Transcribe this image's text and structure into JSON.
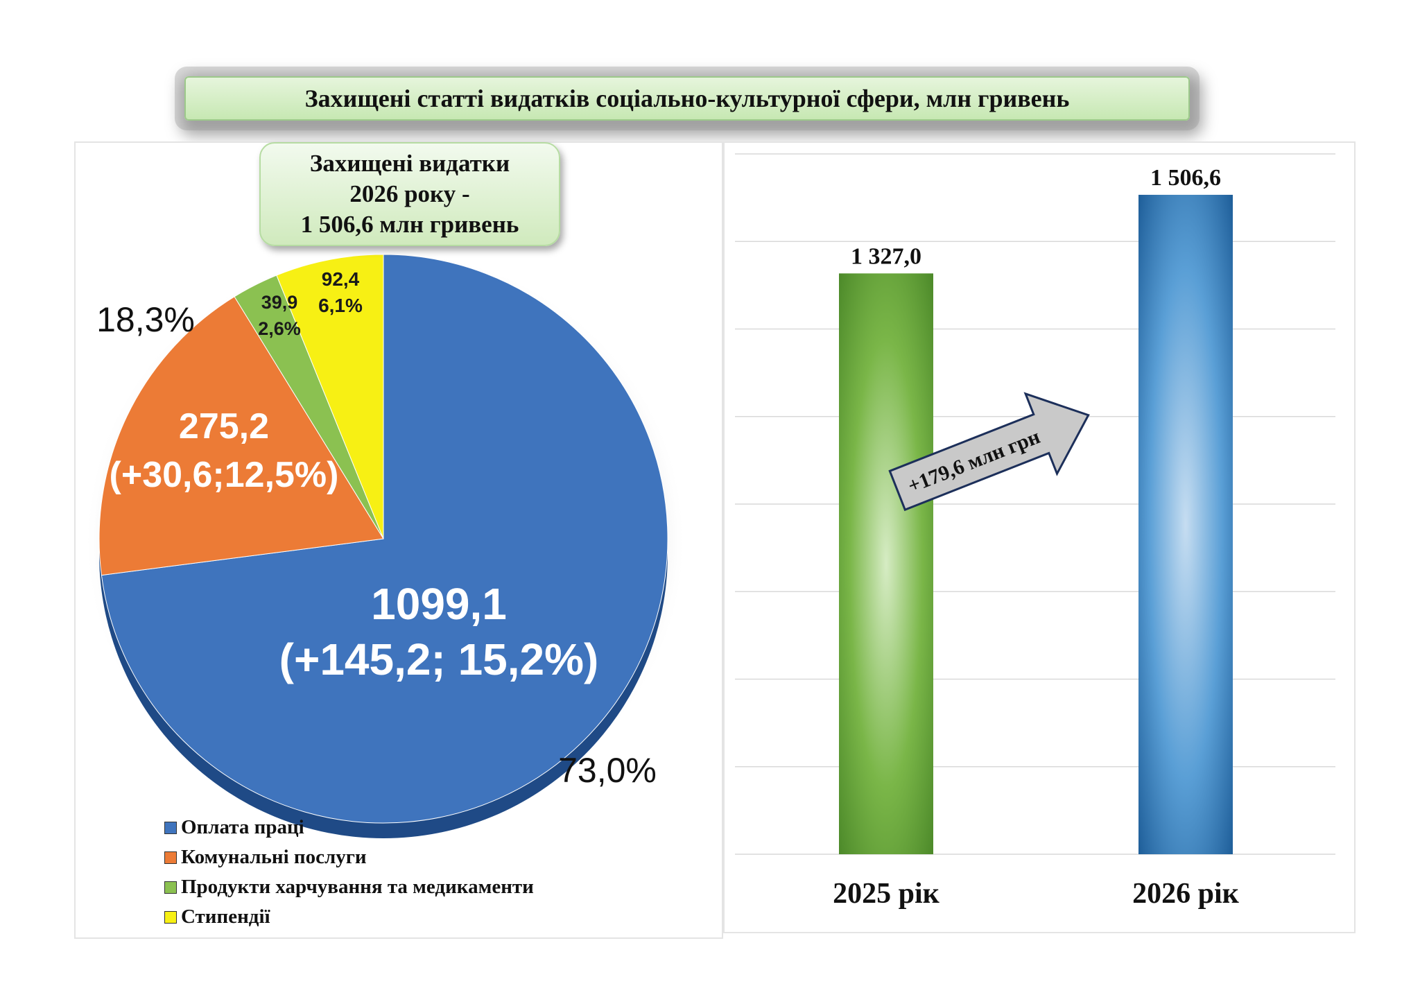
{
  "header": {
    "title": "Захищені статті видатків соціально-культурної сфери, млн гривень"
  },
  "callout": {
    "line1": "Захищені видатки",
    "line2": "2026 року -",
    "line3": "1 506,6 млн гривень"
  },
  "colors": {
    "blue": "#3f74bd",
    "orange": "#ec7b36",
    "green": "#8bc151",
    "yellow": "#f7f014"
  },
  "chart_data": [
    {
      "type": "pie",
      "title": "",
      "slices": [
        {
          "name": "Оплата праці",
          "value": 1099.1,
          "percent": 73.0,
          "label_value": "1099,1",
          "label_change": "(+145,2; 15,2%)",
          "label_percent": "73,0%",
          "color": "#3f74bd"
        },
        {
          "name": "Комунальні послуги",
          "value": 275.2,
          "percent": 18.3,
          "label_value": "275,2",
          "label_change": "(+30,6;12,5%)",
          "label_percent": "18,3%",
          "color": "#ec7b36"
        },
        {
          "name": "Продукти харчування та медикаменти",
          "value": 39.9,
          "percent": 2.6,
          "label_value": "39,9",
          "label_percent": "2,6%",
          "color": "#8bc151"
        },
        {
          "name": "Стипендії",
          "value": 92.4,
          "percent": 6.1,
          "label_value": "92,4",
          "label_percent": "6,1%",
          "color": "#f7f014"
        }
      ],
      "legend": [
        "Оплата праці",
        "Комунальні послуги",
        "Продукти харчування та медикаменти",
        "Стипендії"
      ],
      "legend_position": "bottom-left"
    },
    {
      "type": "bar",
      "title": "",
      "categories": [
        "2025 рік",
        "2026 рік"
      ],
      "values": [
        1327.0,
        1506.6
      ],
      "value_labels": [
        "1 327,0",
        "1 506,6"
      ],
      "colors": [
        "#6ea83e",
        "#3a84c6"
      ],
      "annotation": "+179,6 млн грн",
      "ylim": [
        0,
        1600
      ],
      "grid": true
    }
  ]
}
